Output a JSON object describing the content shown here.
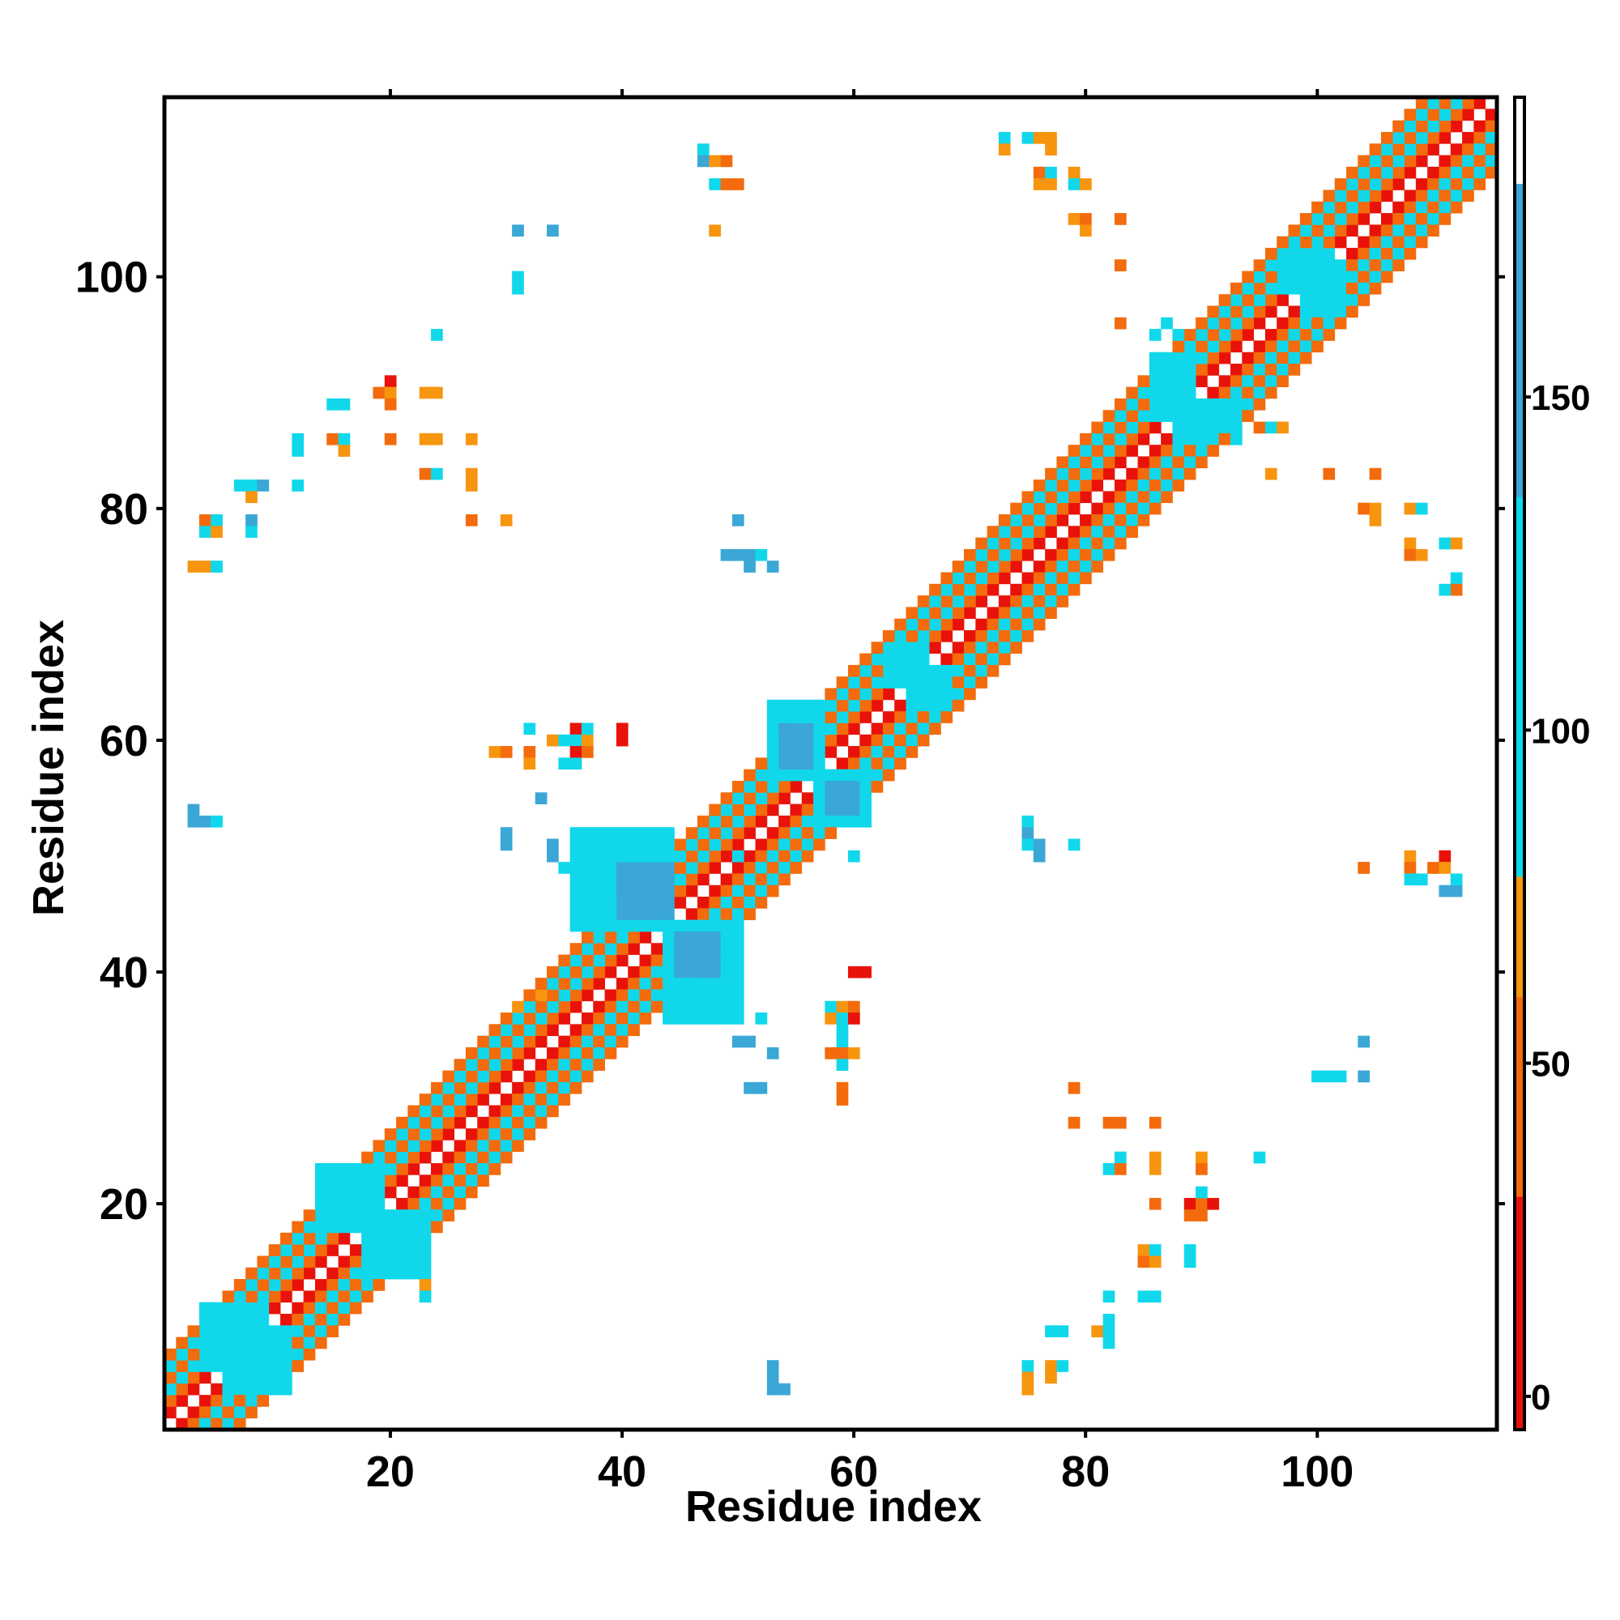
{
  "chart_data": {
    "type": "heatmap",
    "title": "",
    "xlabel": "Residue index",
    "ylabel": "Residue index",
    "xlim": [
      0.5,
      115.5
    ],
    "ylim": [
      0.5,
      115.5
    ],
    "x_ticks": [
      20,
      40,
      60,
      80,
      100
    ],
    "y_ticks": [
      20,
      40,
      60,
      80,
      100
    ],
    "x_tick_labels": [
      "20",
      "40",
      "60",
      "80",
      "100"
    ],
    "y_tick_labels": [
      "20",
      "40",
      "60",
      "80",
      "100"
    ],
    "colorbar": {
      "min": -5,
      "max": 195,
      "ticks": [
        0,
        50,
        100,
        150
      ],
      "tick_labels": [
        "0",
        "50",
        "100",
        "150"
      ],
      "bands": [
        {
          "from": -5,
          "to": 30,
          "color": "#e8120a"
        },
        {
          "from": 30,
          "to": 60,
          "color": "#f36b0c"
        },
        {
          "from": 60,
          "to": 78,
          "color": "#f7950f"
        },
        {
          "from": 78,
          "to": 135,
          "color": "#10d8ea"
        },
        {
          "from": 135,
          "to": 182,
          "color": "#3aa7d6"
        },
        {
          "from": 182,
          "to": 195,
          "color": "#ffffff"
        }
      ]
    },
    "value_classes": {
      "red": 15,
      "orange": 45,
      "amber": 70,
      "cyan": 100,
      "blue": 155
    },
    "diagonal_bands": [
      {
        "offset": 1,
        "class": "red"
      },
      {
        "offset": 2,
        "class": "orange"
      },
      {
        "offset": 3,
        "class": "cyan"
      },
      {
        "offset": 4,
        "class": "orange"
      },
      {
        "offset": 5,
        "class": "cyan"
      },
      {
        "offset": 6,
        "class": "orange"
      }
    ],
    "blocks": [
      {
        "class": "cyan",
        "x": [
          36,
          44
        ],
        "y": [
          44,
          52
        ]
      },
      {
        "class": "blue",
        "x": [
          40,
          44
        ],
        "y": [
          45,
          49
        ]
      },
      {
        "class": "cyan",
        "x": [
          44,
          50
        ],
        "y": [
          36,
          44
        ]
      },
      {
        "class": "blue",
        "x": [
          45,
          48
        ],
        "y": [
          40,
          43
        ]
      },
      {
        "class": "cyan",
        "x": [
          53,
          57
        ],
        "y": [
          57,
          63
        ]
      },
      {
        "class": "blue",
        "x": [
          54,
          56
        ],
        "y": [
          58,
          61
        ]
      },
      {
        "class": "cyan",
        "x": [
          57,
          61
        ],
        "y": [
          53,
          57
        ]
      },
      {
        "class": "blue",
        "x": [
          58,
          60
        ],
        "y": [
          54,
          56
        ]
      },
      {
        "class": "cyan",
        "x": [
          63,
          66
        ],
        "y": [
          65,
          68
        ]
      },
      {
        "class": "cyan",
        "x": [
          65,
          68
        ],
        "y": [
          63,
          66
        ]
      },
      {
        "class": "cyan",
        "x": [
          86,
          89
        ],
        "y": [
          88,
          93
        ]
      },
      {
        "class": "cyan",
        "x": [
          88,
          93
        ],
        "y": [
          86,
          89
        ]
      },
      {
        "class": "cyan",
        "x": [
          97,
          101
        ],
        "y": [
          99,
          102
        ]
      },
      {
        "class": "cyan",
        "x": [
          99,
          102
        ],
        "y": [
          97,
          101
        ]
      },
      {
        "class": "cyan",
        "x": [
          14,
          19
        ],
        "y": [
          18,
          23
        ]
      },
      {
        "class": "cyan",
        "x": [
          18,
          23
        ],
        "y": [
          14,
          19
        ]
      },
      {
        "class": "cyan",
        "x": [
          4,
          9
        ],
        "y": [
          6,
          11
        ]
      },
      {
        "class": "cyan",
        "x": [
          6,
          11
        ],
        "y": [
          4,
          9
        ]
      }
    ],
    "cells": [
      [
        "cyan",
        47,
        111
      ],
      [
        "blue",
        47,
        110
      ],
      [
        "amber",
        48,
        110
      ],
      [
        "orange",
        49,
        110
      ],
      [
        "cyan",
        48,
        108
      ],
      [
        "orange",
        49,
        108
      ],
      [
        "orange",
        50,
        108
      ],
      [
        "amber",
        48,
        104
      ],
      [
        "blue",
        31,
        104
      ],
      [
        "blue",
        34,
        104
      ],
      [
        "cyan",
        31,
        100
      ],
      [
        "cyan",
        31,
        99
      ],
      [
        "cyan",
        24,
        95
      ],
      [
        "red",
        20,
        91
      ],
      [
        "orange",
        19,
        90
      ],
      [
        "amber",
        20,
        90
      ],
      [
        "amber",
        23,
        90
      ],
      [
        "amber",
        24,
        90
      ],
      [
        "orange",
        20,
        89
      ],
      [
        "cyan",
        15,
        89
      ],
      [
        "cyan",
        16,
        89
      ],
      [
        "orange",
        15,
        86
      ],
      [
        "cyan",
        16,
        86
      ],
      [
        "amber",
        16,
        85
      ],
      [
        "cyan",
        12,
        86
      ],
      [
        "cyan",
        12,
        85
      ],
      [
        "orange",
        20,
        86
      ],
      [
        "amber",
        23,
        86
      ],
      [
        "amber",
        24,
        86
      ],
      [
        "amber",
        27,
        86
      ],
      [
        "orange",
        23,
        83
      ],
      [
        "cyan",
        24,
        83
      ],
      [
        "amber",
        27,
        83
      ],
      [
        "amber",
        27,
        82
      ],
      [
        "cyan",
        7,
        82
      ],
      [
        "cyan",
        8,
        82
      ],
      [
        "blue",
        9,
        82
      ],
      [
        "cyan",
        12,
        82
      ],
      [
        "amber",
        8,
        81
      ],
      [
        "orange",
        4,
        79
      ],
      [
        "cyan",
        5,
        79
      ],
      [
        "blue",
        8,
        79
      ],
      [
        "cyan",
        4,
        78
      ],
      [
        "amber",
        5,
        78
      ],
      [
        "cyan",
        8,
        78
      ],
      [
        "orange",
        27,
        79
      ],
      [
        "amber",
        30,
        79
      ],
      [
        "amber",
        3,
        75
      ],
      [
        "amber",
        4,
        75
      ],
      [
        "cyan",
        5,
        75
      ],
      [
        "blue",
        3,
        54
      ],
      [
        "blue",
        3,
        53
      ],
      [
        "blue",
        4,
        53
      ],
      [
        "cyan",
        5,
        53
      ],
      [
        "amber",
        29,
        59
      ],
      [
        "orange",
        30,
        59
      ],
      [
        "cyan",
        32,
        61
      ],
      [
        "orange",
        32,
        59
      ],
      [
        "amber",
        32,
        58
      ],
      [
        "amber",
        34,
        60
      ],
      [
        "cyan",
        35,
        60
      ],
      [
        "red",
        36,
        61
      ],
      [
        "cyan",
        36,
        60
      ],
      [
        "amber",
        37,
        60
      ],
      [
        "cyan",
        37,
        61
      ],
      [
        "red",
        36,
        59
      ],
      [
        "orange",
        37,
        59
      ],
      [
        "cyan",
        35,
        58
      ],
      [
        "cyan",
        36,
        58
      ],
      [
        "red",
        40,
        61
      ],
      [
        "red",
        40,
        60
      ],
      [
        "blue",
        33,
        55
      ],
      [
        "blue",
        30,
        52
      ],
      [
        "blue",
        30,
        51
      ],
      [
        "blue",
        34,
        51
      ],
      [
        "blue",
        34,
        50
      ],
      [
        "cyan",
        35,
        49
      ],
      [
        "amber",
        31,
        37
      ],
      [
        "amber",
        33,
        38
      ],
      [
        "orange",
        33,
        37
      ],
      [
        "red",
        60,
        40
      ],
      [
        "red",
        61,
        40
      ],
      [
        "cyan",
        58,
        37
      ],
      [
        "amber",
        59,
        37
      ],
      [
        "orange",
        60,
        37
      ],
      [
        "amber",
        58,
        36
      ],
      [
        "cyan",
        59,
        36
      ],
      [
        "red",
        60,
        36
      ],
      [
        "cyan",
        59,
        35
      ],
      [
        "cyan",
        59,
        34
      ],
      [
        "orange",
        58,
        33
      ],
      [
        "orange",
        59,
        33
      ],
      [
        "amber",
        60,
        33
      ],
      [
        "cyan",
        59,
        32
      ],
      [
        "orange",
        59,
        30
      ],
      [
        "orange",
        59,
        29
      ],
      [
        "blue",
        50,
        34
      ],
      [
        "blue",
        51,
        34
      ],
      [
        "cyan",
        52,
        36
      ],
      [
        "blue",
        53,
        33
      ],
      [
        "blue",
        51,
        30
      ],
      [
        "blue",
        52,
        30
      ],
      [
        "blue",
        50,
        79
      ],
      [
        "blue",
        49,
        76
      ],
      [
        "blue",
        50,
        76
      ],
      [
        "blue",
        51,
        76
      ],
      [
        "cyan",
        52,
        76
      ],
      [
        "blue",
        51,
        75
      ],
      [
        "blue",
        53,
        75
      ],
      [
        "cyan",
        50,
        50
      ],
      [
        "cyan",
        60,
        50
      ],
      [
        "cyan",
        75,
        53
      ],
      [
        "blue",
        75,
        52
      ],
      [
        "cyan",
        75,
        51
      ],
      [
        "blue",
        76,
        51
      ],
      [
        "blue",
        76,
        50
      ],
      [
        "cyan",
        79,
        51
      ],
      [
        "blue",
        53,
        6
      ],
      [
        "blue",
        53,
        5
      ],
      [
        "blue",
        54,
        4
      ],
      [
        "blue",
        53,
        4
      ],
      [
        "cyan",
        75,
        6
      ],
      [
        "amber",
        75,
        5
      ],
      [
        "amber",
        75,
        4
      ],
      [
        "amber",
        77,
        6
      ],
      [
        "cyan",
        78,
        6
      ],
      [
        "amber",
        77,
        5
      ],
      [
        "cyan",
        77,
        9
      ],
      [
        "cyan",
        78,
        9
      ],
      [
        "amber",
        81,
        9
      ],
      [
        "cyan",
        82,
        9
      ],
      [
        "cyan",
        82,
        10
      ],
      [
        "cyan",
        82,
        8
      ],
      [
        "cyan",
        82,
        12
      ],
      [
        "cyan",
        85,
        12
      ],
      [
        "cyan",
        86,
        12
      ],
      [
        "amber",
        85,
        16
      ],
      [
        "cyan",
        86,
        16
      ],
      [
        "orange",
        85,
        15
      ],
      [
        "amber",
        86,
        15
      ],
      [
        "cyan",
        89,
        16
      ],
      [
        "cyan",
        89,
        15
      ],
      [
        "orange",
        86,
        20
      ],
      [
        "red",
        89,
        20
      ],
      [
        "orange",
        90,
        20
      ],
      [
        "red",
        91,
        20
      ],
      [
        "orange",
        89,
        19
      ],
      [
        "orange",
        90,
        19
      ],
      [
        "cyan",
        90,
        21
      ],
      [
        "cyan",
        82,
        23
      ],
      [
        "cyan",
        83,
        24
      ],
      [
        "orange",
        83,
        23
      ],
      [
        "amber",
        86,
        24
      ],
      [
        "amber",
        86,
        23
      ],
      [
        "amber",
        90,
        24
      ],
      [
        "orange",
        90,
        23
      ],
      [
        "cyan",
        95,
        24
      ],
      [
        "orange",
        79,
        27
      ],
      [
        "orange",
        82,
        27
      ],
      [
        "orange",
        83,
        27
      ],
      [
        "orange",
        86,
        27
      ],
      [
        "orange",
        79,
        30
      ],
      [
        "cyan",
        100,
        31
      ],
      [
        "cyan",
        101,
        31
      ],
      [
        "cyan",
        102,
        31
      ],
      [
        "blue",
        104,
        31
      ],
      [
        "blue",
        104,
        34
      ],
      [
        "cyan",
        73,
        112
      ],
      [
        "amber",
        73,
        111
      ],
      [
        "cyan",
        75,
        112
      ],
      [
        "amber",
        76,
        112
      ],
      [
        "amber",
        77,
        112
      ],
      [
        "amber",
        77,
        111
      ],
      [
        "orange",
        76,
        109
      ],
      [
        "cyan",
        77,
        109
      ],
      [
        "amber",
        76,
        108
      ],
      [
        "amber",
        77,
        108
      ],
      [
        "amber",
        79,
        109
      ],
      [
        "cyan",
        79,
        108
      ],
      [
        "amber",
        80,
        108
      ],
      [
        "amber",
        79,
        105
      ],
      [
        "orange",
        80,
        105
      ],
      [
        "amber",
        80,
        104
      ],
      [
        "orange",
        83,
        105
      ],
      [
        "orange",
        83,
        101
      ],
      [
        "orange",
        83,
        96
      ],
      [
        "amber",
        96,
        83
      ],
      [
        "orange",
        101,
        83
      ],
      [
        "orange",
        105,
        83
      ],
      [
        "orange",
        104,
        80
      ],
      [
        "amber",
        105,
        80
      ],
      [
        "amber",
        105,
        79
      ],
      [
        "amber",
        108,
        80
      ],
      [
        "cyan",
        109,
        80
      ],
      [
        "amber",
        108,
        77
      ],
      [
        "orange",
        108,
        76
      ],
      [
        "amber",
        109,
        76
      ],
      [
        "cyan",
        111,
        77
      ],
      [
        "amber",
        112,
        77
      ],
      [
        "cyan",
        112,
        74
      ],
      [
        "orange",
        112,
        73
      ],
      [
        "cyan",
        111,
        73
      ],
      [
        "orange",
        104,
        49
      ],
      [
        "amber",
        108,
        50
      ],
      [
        "orange",
        108,
        49
      ],
      [
        "cyan",
        108,
        48
      ],
      [
        "cyan",
        109,
        48
      ],
      [
        "orange",
        110,
        49
      ],
      [
        "red",
        111,
        50
      ],
      [
        "amber",
        111,
        49
      ],
      [
        "blue",
        111,
        47
      ],
      [
        "blue",
        112,
        47
      ],
      [
        "cyan",
        112,
        48
      ],
      [
        "amber",
        23,
        13
      ],
      [
        "cyan",
        23,
        12
      ],
      [
        "orange",
        95,
        87
      ],
      [
        "cyan",
        96,
        87
      ],
      [
        "amber",
        97,
        87
      ],
      [
        "cyan",
        93,
        88
      ],
      [
        "orange",
        92,
        86
      ],
      [
        "cyan",
        87,
        96
      ],
      [
        "cyan",
        88,
        95
      ],
      [
        "cyan",
        86,
        95
      ]
    ]
  }
}
